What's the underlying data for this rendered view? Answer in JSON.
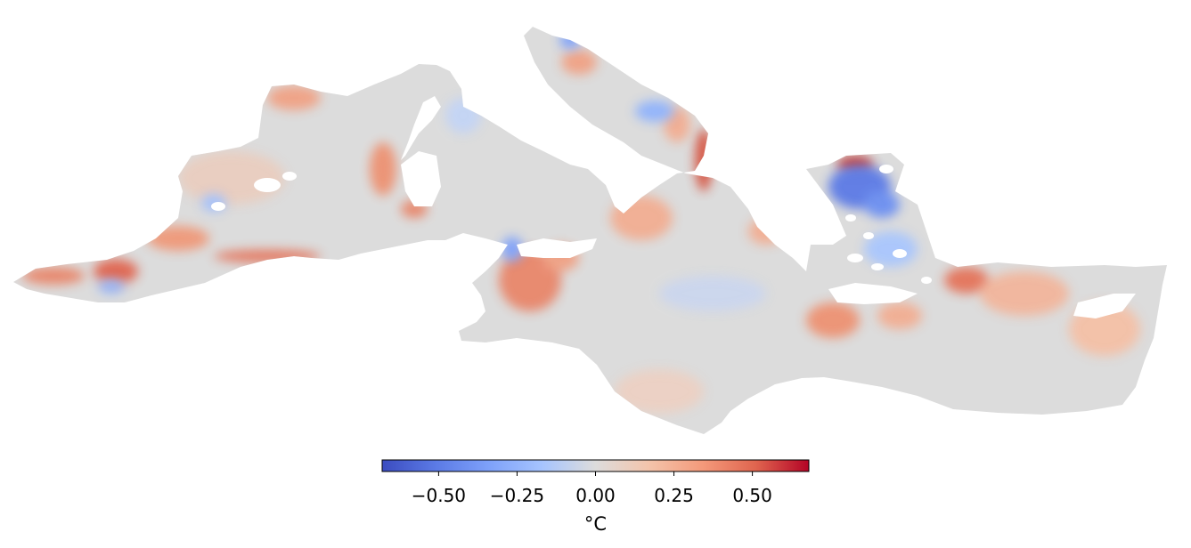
{
  "map": {
    "region": "Mediterranean Sea",
    "type": "sea surface temperature anomaly field",
    "colormap": "coolwarm",
    "colors": {
      "cold_strong": "#3b4cc0",
      "cold": "#8db0fe",
      "neutral": "#dddddd",
      "warm": "#f49a7b",
      "warm_strong": "#b40426",
      "land": "#ffffff"
    }
  },
  "colorbar": {
    "min": -0.68,
    "max": 0.68,
    "ticks": [
      {
        "value": -0.5,
        "label": "−0.50"
      },
      {
        "value": -0.25,
        "label": "−0.25"
      },
      {
        "value": 0,
        "label": "0.00"
      },
      {
        "value": 0.25,
        "label": "0.25"
      },
      {
        "value": 0.5,
        "label": "0.50"
      }
    ],
    "unit": "°C",
    "orientation": "horizontal"
  }
}
